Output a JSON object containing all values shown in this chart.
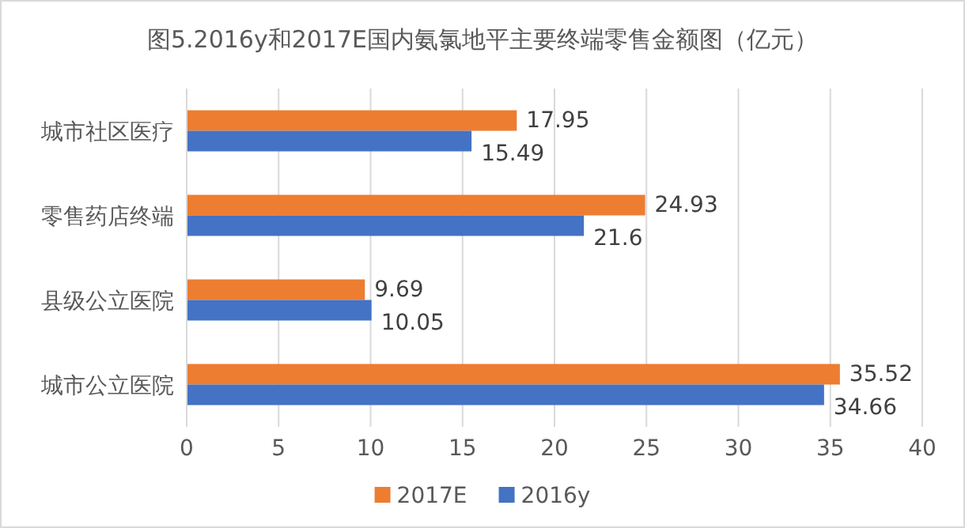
{
  "chart_data": {
    "type": "bar",
    "orientation": "horizontal",
    "title": "图5.2016y和2017E国内氨氯地平主要终端零售金额图（亿元）",
    "categories": [
      "城市社区医疗",
      "零售药店终端",
      "县级公立医院",
      "城市公立医院"
    ],
    "series": [
      {
        "name": "2017E",
        "color": "#ed7d31",
        "values": [
          17.95,
          24.93,
          9.69,
          35.52
        ]
      },
      {
        "name": "2016y",
        "color": "#4472c4",
        "values": [
          15.49,
          21.6,
          10.05,
          34.66
        ]
      }
    ],
    "xlim": [
      0,
      40
    ],
    "xticks": [
      0,
      5,
      10,
      15,
      20,
      25,
      30,
      35,
      40
    ],
    "grid": "x",
    "legend": "bottom",
    "data_labels": true
  }
}
